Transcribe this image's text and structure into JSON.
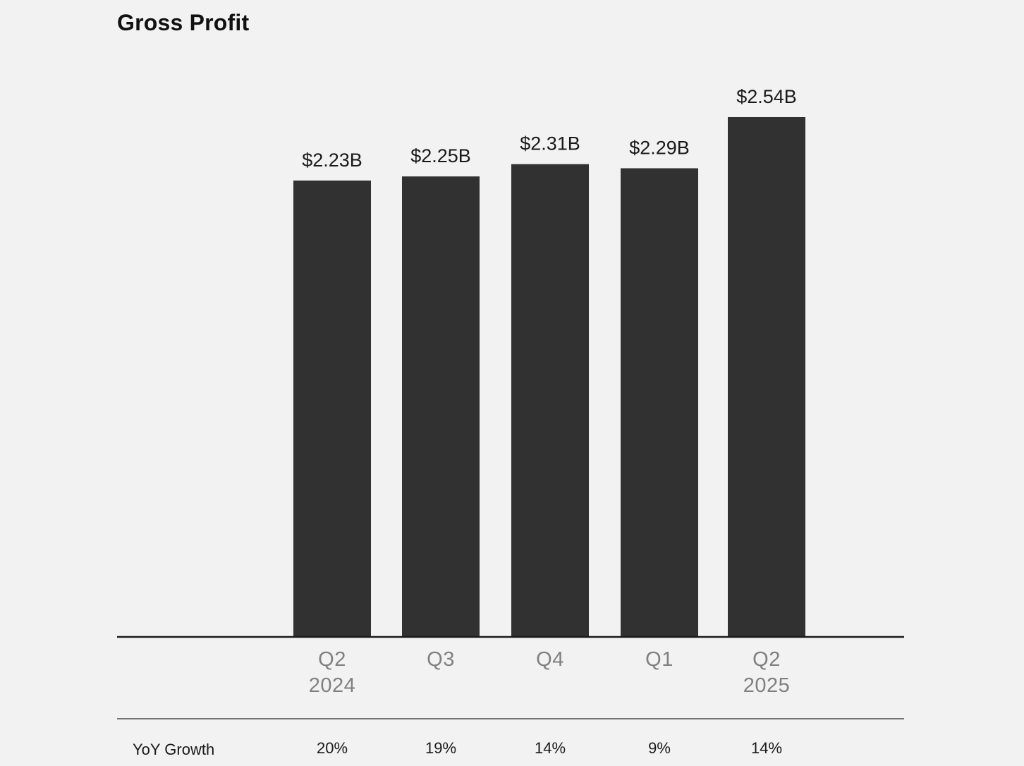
{
  "chart_data": {
    "type": "bar",
    "title": "Gross Profit",
    "unit": "$B",
    "categories": [
      {
        "quarter": "Q2",
        "year": "2024"
      },
      {
        "quarter": "Q3",
        "year": ""
      },
      {
        "quarter": "Q4",
        "year": ""
      },
      {
        "quarter": "Q1",
        "year": ""
      },
      {
        "quarter": "Q2",
        "year": "2025"
      }
    ],
    "values": [
      2.23,
      2.25,
      2.31,
      2.29,
      2.54
    ],
    "value_labels": [
      "$2.23B",
      "$2.25B",
      "$2.31B",
      "$2.29B",
      "$2.54B"
    ],
    "ylim": [
      0,
      2.54
    ],
    "grid": false,
    "bar_color": "#313131",
    "growth_row": {
      "label": "YoY Growth",
      "values": [
        "20%",
        "19%",
        "14%",
        "9%",
        "14%"
      ]
    }
  }
}
